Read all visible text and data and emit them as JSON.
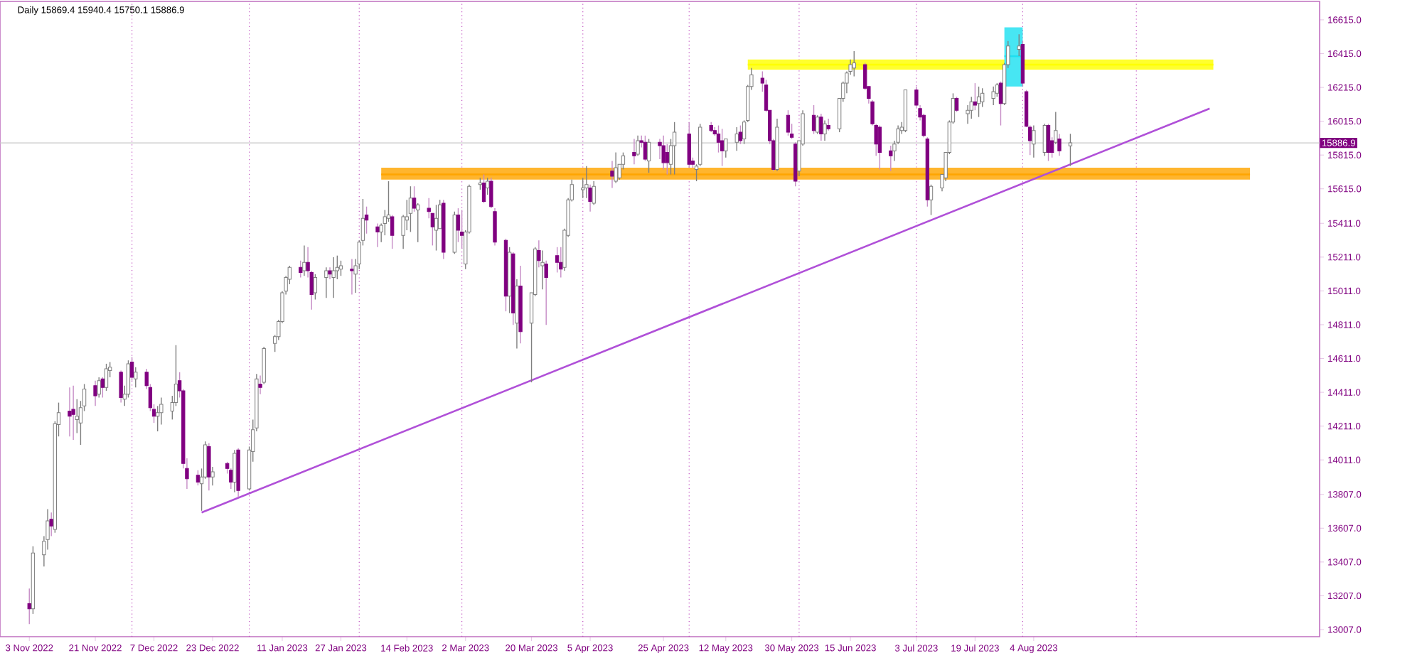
{
  "chart_data": {
    "type": "candlestick",
    "title": "Daily 15869.4 15940.4 15750.1 15886.9",
    "xlim": [
      "2022-10-26",
      "2023-10-21"
    ],
    "ylim": [
      12965,
      16724
    ],
    "xticks": [
      {
        "value": "2022-11-03",
        "label": "3 Nov 2022"
      },
      {
        "value": "2022-11-21",
        "label": "21 Nov 2022"
      },
      {
        "value": "2022-12-07",
        "label": "7 Dec 2022"
      },
      {
        "value": "2022-12-23",
        "label": "23 Dec 2022"
      },
      {
        "value": "2023-01-11",
        "label": "11 Jan 2023"
      },
      {
        "value": "2023-01-27",
        "label": "27 Jan 2023"
      },
      {
        "value": "2023-02-14",
        "label": "14 Feb 2023"
      },
      {
        "value": "2023-03-02",
        "label": "2 Mar 2023"
      },
      {
        "value": "2023-03-20",
        "label": "20 Mar 2023"
      },
      {
        "value": "2023-04-05",
        "label": "5 Apr 2023"
      },
      {
        "value": "2023-04-25",
        "label": "25 Apr 2023"
      },
      {
        "value": "2023-05-12",
        "label": "12 May 2023"
      },
      {
        "value": "2023-05-30",
        "label": "30 May 2023"
      },
      {
        "value": "2023-06-15",
        "label": "15 Jun 2023"
      },
      {
        "value": "2023-07-03",
        "label": "3 Jul 2023"
      },
      {
        "value": "2023-07-19",
        "label": "19 Jul 2023"
      },
      {
        "value": "2023-08-04",
        "label": "4 Aug 2023"
      }
    ],
    "yticks": [
      {
        "value": 16615,
        "label": "16615.0"
      },
      {
        "value": 16415,
        "label": "16415.0"
      },
      {
        "value": 16215,
        "label": "16215.0"
      },
      {
        "value": 16015,
        "label": "16015.0"
      },
      {
        "value": 15815,
        "label": "15815.0"
      },
      {
        "value": 15615,
        "label": "15615.0"
      },
      {
        "value": 15411,
        "label": "15411.0"
      },
      {
        "value": 15211,
        "label": "15211.0"
      },
      {
        "value": 15011,
        "label": "15011.0"
      },
      {
        "value": 14811,
        "label": "14811.0"
      },
      {
        "value": 14611,
        "label": "14611.0"
      },
      {
        "value": 14411,
        "label": "14411.0"
      },
      {
        "value": 14211,
        "label": "14211.0"
      },
      {
        "value": 14011,
        "label": "14011.0"
      },
      {
        "value": 13807,
        "label": "13807.0"
      },
      {
        "value": 13607,
        "label": "13607.0"
      },
      {
        "value": 13407,
        "label": "13407.0"
      },
      {
        "value": 13207,
        "label": "13207.0"
      },
      {
        "value": 13007,
        "label": "13007.0"
      }
    ],
    "ref_lines": [
      {
        "axis": "y",
        "value": 15886.9,
        "label": "15886.9",
        "color": "#c8c8c8"
      },
      {
        "axis": "x",
        "value": "2022-12-01",
        "color": "#c050c0",
        "line_style": "dotted"
      },
      {
        "axis": "x",
        "value": "2023-01-02",
        "color": "#c050c0",
        "line_style": "dotted"
      },
      {
        "axis": "x",
        "value": "2023-02-01",
        "color": "#c050c0",
        "line_style": "dotted"
      },
      {
        "axis": "x",
        "value": "2023-03-01",
        "color": "#c050c0",
        "line_style": "dotted"
      },
      {
        "axis": "x",
        "value": "2023-04-03",
        "color": "#c050c0",
        "line_style": "dotted"
      },
      {
        "axis": "x",
        "value": "2023-05-02",
        "color": "#c050c0",
        "line_style": "dotted"
      },
      {
        "axis": "x",
        "value": "2023-06-01",
        "color": "#c050c0",
        "line_style": "dotted"
      },
      {
        "axis": "x",
        "value": "2023-07-03",
        "color": "#c050c0",
        "line_style": "dotted"
      },
      {
        "axis": "x",
        "value": "2023-08-01",
        "color": "#c050c0",
        "line_style": "dotted"
      },
      {
        "axis": "x",
        "value": "2023-09-01",
        "color": "#c050c0",
        "line_style": "dotted"
      }
    ],
    "series": [
      {
        "type": "line",
        "x": [
          "2023-05-18",
          "2023-09-22"
        ],
        "values": [
          16350,
          16350
        ],
        "lower": [
          16320,
          16320
        ],
        "upper": [
          16380,
          16380
        ],
        "color": "#ffff00"
      },
      {
        "type": "line",
        "x": [
          "2023-02-07",
          "2023-10-02"
        ],
        "values": [
          15700,
          15700
        ],
        "lower": [
          15670,
          15670
        ],
        "upper": [
          15740,
          15740
        ],
        "color": "#ffa500"
      },
      {
        "type": "line",
        "x": [
          "2023-07-27",
          "2023-08-01"
        ],
        "values": [
          16400,
          16400
        ],
        "lower": [
          16220,
          16220
        ],
        "upper": [
          16570,
          16570
        ],
        "color": "#1ee0f0"
      },
      {
        "type": "line",
        "x": [
          "2022-12-20",
          "2023-09-21"
        ],
        "values": [
          13700,
          16090
        ],
        "color": "#b050d8"
      },
      {
        "colors": [
          "#800080",
          "#ffffff",
          "#ffffff",
          "#ffffff",
          "#800080",
          "#ffffff",
          "#ffffff",
          "#800080",
          "#800080",
          "#ffffff",
          "#ffffff",
          "#ffffff",
          "#800080",
          "#ffffff",
          "#800080",
          "#ffffff",
          "#ffffff",
          "#800080",
          "#ffffff",
          "#ffffff",
          "#800080",
          "#ffffff",
          "#800080",
          "#800080",
          "#800080",
          "#ffffff",
          "#ffffff",
          "#ffffff",
          "#ffffff",
          "#800080",
          "#800080",
          "#800080",
          "#800080",
          "#ffffff",
          "#ffffff",
          "#800080",
          "#ffffff",
          "#800080",
          "#800080",
          "#ffffff",
          "#800080",
          "#ffffff",
          "#ffffff",
          "#ffffff",
          "#800080",
          "#ffffff",
          "#ffffff",
          "#ffffff",
          "#ffffff",
          "#ffffff",
          "#ffffff",
          "#800080",
          "#ffffff",
          "#800080",
          "#800080",
          "#ffffff",
          "#ffffff",
          "#800080",
          "#ffffff",
          "#ffffff",
          "#ffffff",
          "#800080",
          "#ffffff",
          "#ffffff",
          "#ffffff",
          "#800080",
          "#800080",
          "#ffffff",
          "#ffffff",
          "#ffffff",
          "#800080",
          "#ffffff",
          "#ffffff",
          "#ffffff",
          "#800080",
          "#ffffff",
          "#800080",
          "#800080",
          "#ffffff",
          "#ffffff",
          "#800080",
          "#ffffff",
          "#800080",
          "#800080",
          "#ffffff",
          "#ffffff",
          "#ffffff",
          "#800080",
          "#ffffff",
          "#800080",
          "#800080",
          "#800080",
          "#ffffff",
          "#800080",
          "#ffffff",
          "#800080",
          "#ffffff",
          "#ffffff",
          "#800080",
          "#ffffff",
          "#800080",
          "#800080",
          "#800080",
          "#ffffff",
          "#ffffff",
          "#ffffff",
          "#ffffff",
          "#ffffff",
          "#800080",
          "#ffffff",
          "#800080",
          "#ffffff",
          "#ffffff",
          "#ffffff",
          "#800080",
          "#ffffff",
          "#800080",
          "#800080",
          "#ffffff",
          "#800080",
          "#800080",
          "#800080",
          "#ffffff",
          "#ffffff",
          "#800080",
          "#800080",
          "#ffffff",
          "#ffffff",
          "#800080",
          "#800080",
          "#800080",
          "#800080",
          "#ffffff",
          "#ffffff",
          "#800080",
          "#ffffff",
          "#ffffff",
          "#ffffff",
          "#800080",
          "#800080",
          "#800080",
          "#800080",
          "#ffffff",
          "#800080",
          "#800080",
          "#800080",
          "#ffffff",
          "#ffffff",
          "#800080",
          "#ffffff",
          "#800080",
          "#ffffff",
          "#800080",
          "#ffffff",
          "#ffffff",
          "#ffffff",
          "#ffffff",
          "#ffffff",
          "#800080",
          "#800080",
          "#800080",
          "#800080",
          "#800080",
          "#800080",
          "#ffffff",
          "#ffffff",
          "#ffffff",
          "#ffffff",
          "#800080",
          "#800080",
          "#800080",
          "#800080",
          "#ffffff",
          "#ffffff",
          "#ffffff",
          "#ffffff",
          "#ffffff",
          "#800080",
          "#ffffff",
          "#ffffff",
          "#800080",
          "#ffffff",
          "#ffffff",
          "#ffffff",
          "#ffffff",
          "#800080",
          "#ffffff",
          "#ffffff",
          "#ffffff",
          "#800080",
          "#800080",
          "#800080",
          "#ffffff",
          "#ffffff",
          "#800080",
          "#800080",
          "#ffffff",
          "#800080",
          "#ffffff"
        ],
        "x": [
          "2022-11-03",
          "2022-11-04",
          "2022-11-07",
          "2022-11-08",
          "2022-11-09",
          "2022-11-10",
          "2022-11-11",
          "2022-11-14",
          "2022-11-15",
          "2022-11-16",
          "2022-11-17",
          "2022-11-18",
          "2022-11-21",
          "2022-11-22",
          "2022-11-23",
          "2022-11-24",
          "2022-11-25",
          "2022-11-28",
          "2022-11-29",
          "2022-11-30",
          "2022-12-01",
          "2022-12-02",
          "2022-12-05",
          "2022-12-06",
          "2022-12-07",
          "2022-12-08",
          "2022-12-09",
          "2022-12-12",
          "2022-12-13",
          "2022-12-14",
          "2022-12-15",
          "2022-12-16",
          "2022-12-19",
          "2022-12-20",
          "2022-12-21",
          "2022-12-22",
          "2022-12-23",
          "2022-12-27",
          "2022-12-28",
          "2022-12-29",
          "2022-12-30",
          "2023-01-02",
          "2023-01-03",
          "2023-01-04",
          "2023-01-05",
          "2023-01-06",
          "2023-01-09",
          "2023-01-10",
          "2023-01-11",
          "2023-01-12",
          "2023-01-13",
          "2023-01-16",
          "2023-01-17",
          "2023-01-18",
          "2023-01-19",
          "2023-01-20",
          "2023-01-23",
          "2023-01-24",
          "2023-01-25",
          "2023-01-26",
          "2023-01-27",
          "2023-01-30",
          "2023-01-31",
          "2023-02-01",
          "2023-02-02",
          "2023-02-03",
          "2023-02-06",
          "2023-02-07",
          "2023-02-08",
          "2023-02-09",
          "2023-02-10",
          "2023-02-13",
          "2023-02-14",
          "2023-02-15",
          "2023-02-16",
          "2023-02-17",
          "2023-02-20",
          "2023-02-21",
          "2023-02-22",
          "2023-02-23",
          "2023-02-24",
          "2023-02-27",
          "2023-02-28",
          "2023-03-01",
          "2023-03-02",
          "2023-03-03",
          "2023-03-06",
          "2023-03-07",
          "2023-03-08",
          "2023-03-09",
          "2023-03-10",
          "2023-03-13",
          "2023-03-14",
          "2023-03-15",
          "2023-03-16",
          "2023-03-17",
          "2023-03-20",
          "2023-03-21",
          "2023-03-22",
          "2023-03-23",
          "2023-03-24",
          "2023-03-27",
          "2023-03-28",
          "2023-03-29",
          "2023-03-30",
          "2023-03-31",
          "2023-04-03",
          "2023-04-04",
          "2023-04-05",
          "2023-04-06",
          "2023-04-11",
          "2023-04-12",
          "2023-04-13",
          "2023-04-14",
          "2023-04-17",
          "2023-04-18",
          "2023-04-19",
          "2023-04-20",
          "2023-04-21",
          "2023-04-24",
          "2023-04-25",
          "2023-04-26",
          "2023-04-27",
          "2023-04-28",
          "2023-05-02",
          "2023-05-03",
          "2023-05-04",
          "2023-05-05",
          "2023-05-08",
          "2023-05-09",
          "2023-05-10",
          "2023-05-11",
          "2023-05-12",
          "2023-05-15",
          "2023-05-16",
          "2023-05-17",
          "2023-05-18",
          "2023-05-19",
          "2023-05-22",
          "2023-05-23",
          "2023-05-24",
          "2023-05-25",
          "2023-05-26",
          "2023-05-29",
          "2023-05-30",
          "2023-05-31",
          "2023-06-01",
          "2023-06-02",
          "2023-06-05",
          "2023-06-06",
          "2023-06-07",
          "2023-06-08",
          "2023-06-09",
          "2023-06-12",
          "2023-06-13",
          "2023-06-14",
          "2023-06-15",
          "2023-06-16",
          "2023-06-19",
          "2023-06-20",
          "2023-06-21",
          "2023-06-22",
          "2023-06-23",
          "2023-06-26",
          "2023-06-27",
          "2023-06-28",
          "2023-06-29",
          "2023-06-30",
          "2023-07-03",
          "2023-07-04",
          "2023-07-05",
          "2023-07-06",
          "2023-07-07",
          "2023-07-10",
          "2023-07-11",
          "2023-07-12",
          "2023-07-13",
          "2023-07-14",
          "2023-07-17",
          "2023-07-18",
          "2023-07-19",
          "2023-07-20",
          "2023-07-21",
          "2023-07-24",
          "2023-07-25",
          "2023-07-26",
          "2023-07-27",
          "2023-07-28",
          "2023-07-31",
          "2023-08-01",
          "2023-08-02",
          "2023-08-03",
          "2023-08-04",
          "2023-08-07",
          "2023-08-08",
          "2023-08-09",
          "2023-08-10",
          "2023-08-11",
          "2023-08-14"
        ],
        "ohlc": [
          [
            13160,
            13250,
            13040,
            13130
          ],
          [
            13130,
            13500,
            13100,
            13460
          ],
          [
            13450,
            13560,
            13380,
            13530
          ],
          [
            13540,
            13720,
            13480,
            13650
          ],
          [
            13660,
            13700,
            13560,
            13620
          ],
          [
            13600,
            14240,
            13580,
            14225
          ],
          [
            14220,
            14350,
            14150,
            14290
          ],
          [
            14300,
            14440,
            14150,
            14270
          ],
          [
            14310,
            14450,
            14130,
            14280
          ],
          [
            14250,
            14370,
            14170,
            14270
          ],
          [
            14230,
            14360,
            14100,
            14320
          ],
          [
            14330,
            14460,
            14300,
            14430
          ],
          [
            14450,
            14480,
            14330,
            14390
          ],
          [
            14400,
            14500,
            14380,
            14480
          ],
          [
            14490,
            14500,
            14380,
            14440
          ],
          [
            14440,
            14580,
            14420,
            14550
          ],
          [
            14540,
            14590,
            14500,
            14560
          ],
          [
            14530,
            14540,
            14350,
            14380
          ],
          [
            14370,
            14450,
            14330,
            14400
          ],
          [
            14400,
            14600,
            14380,
            14580
          ],
          [
            14590,
            14620,
            14480,
            14500
          ],
          [
            14490,
            14560,
            14440,
            14530
          ],
          [
            14530,
            14550,
            14430,
            14450
          ],
          [
            14440,
            14460,
            14300,
            14320
          ],
          [
            14310,
            14340,
            14230,
            14270
          ],
          [
            14270,
            14330,
            14180,
            14290
          ],
          [
            14290,
            14380,
            14220,
            14340
          ],
          [
            14300,
            14390,
            14250,
            14350
          ],
          [
            14350,
            14690,
            14330,
            14460
          ],
          [
            14480,
            14530,
            14380,
            14420
          ],
          [
            14420,
            14430,
            13960,
            13990
          ],
          [
            13960,
            14020,
            13840,
            13900
          ],
          [
            13920,
            13950,
            13860,
            13880
          ],
          [
            13870,
            13960,
            13710,
            13910
          ],
          [
            13910,
            14120,
            13900,
            14100
          ],
          [
            14090,
            14110,
            13830,
            13910
          ],
          [
            13910,
            13970,
            13860,
            13940
          ],
          [
            13990,
            14000,
            13930,
            13960
          ],
          [
            13950,
            13960,
            13840,
            13880
          ],
          [
            13880,
            14070,
            13820,
            14050
          ],
          [
            14070,
            14080,
            13790,
            13830
          ],
          [
            13840,
            14090,
            13830,
            14070
          ],
          [
            14060,
            14250,
            14000,
            14190
          ],
          [
            14200,
            14520,
            14180,
            14490
          ],
          [
            14460,
            14510,
            14400,
            14440
          ],
          [
            14470,
            14680,
            14460,
            14670
          ],
          [
            14700,
            14750,
            14650,
            14740
          ],
          [
            14740,
            14840,
            14720,
            14830
          ],
          [
            14830,
            15010,
            14820,
            15000
          ],
          [
            15010,
            15100,
            14990,
            15090
          ],
          [
            15080,
            15160,
            15050,
            15150
          ],
          [
            15150,
            15190,
            15090,
            15120
          ],
          [
            15130,
            15280,
            15100,
            15180
          ],
          [
            15180,
            15270,
            15090,
            15130
          ],
          [
            15120,
            15130,
            14900,
            14990
          ],
          [
            15000,
            15110,
            14960,
            15090
          ],
          [
            15090,
            15150,
            14970,
            15130
          ],
          [
            15130,
            15150,
            15080,
            15110
          ],
          [
            15090,
            15210,
            14970,
            15130
          ],
          [
            15130,
            15220,
            15080,
            15150
          ],
          [
            15140,
            15190,
            15100,
            15160
          ],
          [
            15140,
            15200,
            14990,
            15130
          ],
          [
            15110,
            15200,
            15000,
            15160
          ],
          [
            15170,
            15310,
            15140,
            15300
          ],
          [
            15310,
            15555,
            15280,
            15440
          ],
          [
            15460,
            15510,
            15350,
            15430
          ],
          [
            15390,
            15410,
            15270,
            15360
          ],
          [
            15360,
            15410,
            15300,
            15400
          ],
          [
            15410,
            15490,
            15340,
            15450
          ],
          [
            15440,
            15660,
            15420,
            15460
          ],
          [
            15450,
            15460,
            15260,
            15340
          ],
          [
            15340,
            15460,
            15260,
            15450
          ],
          [
            15430,
            15550,
            15370,
            15450
          ],
          [
            15470,
            15630,
            15360,
            15560
          ],
          [
            15560,
            15630,
            15480,
            15500
          ],
          [
            15490,
            15530,
            15300,
            15520
          ],
          [
            15500,
            15560,
            15440,
            15480
          ],
          [
            15470,
            15470,
            15280,
            15390
          ],
          [
            15370,
            15520,
            15250,
            15440
          ],
          [
            15380,
            15550,
            15380,
            15520
          ],
          [
            15530,
            15550,
            15200,
            15240
          ],
          [
            15240,
            15480,
            15230,
            15460
          ],
          [
            15460,
            15500,
            15300,
            15370
          ],
          [
            15360,
            15490,
            15260,
            15340
          ],
          [
            15170,
            15370,
            15140,
            15360
          ],
          [
            15360,
            15640,
            15350,
            15630
          ],
          [
            15640,
            15680,
            15610,
            15650
          ],
          [
            15650,
            15700,
            15530,
            15540
          ],
          [
            15620,
            15680,
            15580,
            15660
          ],
          [
            15660,
            15680,
            15500,
            15510
          ],
          [
            15480,
            15500,
            15280,
            15300
          ],
          [
            15310,
            15320,
            14890,
            14980
          ],
          [
            14980,
            15270,
            14880,
            15240
          ],
          [
            15230,
            15240,
            14810,
            14880
          ],
          [
            14820,
            15080,
            14670,
            15040
          ],
          [
            15040,
            15160,
            14700,
            14770
          ],
          [
            14820,
            15000,
            14470,
            15000
          ],
          [
            14990,
            15270,
            14980,
            15260
          ],
          [
            15250,
            15310,
            15150,
            15190
          ],
          [
            15160,
            15250,
            15020,
            15180
          ],
          [
            15170,
            15190,
            14810,
            15090
          ],
          [
            15220,
            15270,
            15120,
            15180
          ],
          [
            15180,
            15270,
            15090,
            15140
          ],
          [
            15150,
            15380,
            15130,
            15370
          ],
          [
            15340,
            15560,
            15330,
            15550
          ],
          [
            15550,
            15670,
            15540,
            15640
          ],
          [
            15610,
            15680,
            15560,
            15620
          ],
          [
            15620,
            15750,
            15560,
            15640
          ],
          [
            15620,
            15640,
            15480,
            15540
          ],
          [
            15530,
            15660,
            15520,
            15630
          ],
          [
            15720,
            15780,
            15620,
            15690
          ],
          [
            15660,
            15830,
            15650,
            15740
          ],
          [
            15680,
            15760,
            15670,
            15760
          ],
          [
            15760,
            15830,
            15730,
            15810
          ],
          [
            15830,
            15910,
            15760,
            15810
          ],
          [
            15820,
            15930,
            15810,
            15900
          ],
          [
            15900,
            15930,
            15860,
            15890
          ],
          [
            15890,
            15930,
            15780,
            15790
          ],
          [
            15780,
            15910,
            15710,
            15890
          ],
          [
            15890,
            15910,
            15790,
            15870
          ],
          [
            15870,
            15930,
            15730,
            15770
          ],
          [
            15830,
            15880,
            15700,
            15770
          ],
          [
            15760,
            15910,
            15700,
            15870
          ],
          [
            15870,
            16010,
            15700,
            15950
          ],
          [
            15940,
            16010,
            15740,
            15760
          ],
          [
            15780,
            15800,
            15740,
            15760
          ],
          [
            15730,
            15760,
            15660,
            15750
          ],
          [
            15760,
            16000,
            15750,
            15980
          ],
          [
            15990,
            16010,
            15950,
            15960
          ],
          [
            15960,
            15980,
            15930,
            15940
          ],
          [
            15940,
            15990,
            15830,
            15890
          ],
          [
            15900,
            15970,
            15750,
            15840
          ],
          [
            15840,
            15910,
            15800,
            15910
          ],
          [
            15890,
            15980,
            15840,
            15940
          ],
          [
            15950,
            15990,
            15880,
            15900
          ],
          [
            15910,
            16020,
            15880,
            16010
          ],
          [
            16020,
            16230,
            16010,
            16220
          ],
          [
            16220,
            16330,
            16200,
            16290
          ],
          [
            16270,
            16310,
            16190,
            16240
          ],
          [
            16230,
            16260,
            16070,
            16080
          ],
          [
            16080,
            16080,
            15880,
            15900
          ],
          [
            15900,
            15910,
            15720,
            15730
          ],
          [
            15730,
            16030,
            15720,
            15980
          ],
          [
            16050,
            16080,
            15930,
            15950
          ],
          [
            15940,
            16000,
            15910,
            15920
          ],
          [
            15880,
            15890,
            15630,
            15660
          ],
          [
            15720,
            15900,
            15690,
            15900
          ],
          [
            15880,
            16080,
            15870,
            16060
          ],
          [
            16050,
            16110,
            15940,
            15960
          ],
          [
            15950,
            16050,
            15940,
            16040
          ],
          [
            16040,
            16060,
            15900,
            15940
          ],
          [
            15940,
            16020,
            15900,
            16000
          ],
          [
            15990,
            16030,
            15960,
            15970
          ],
          [
            15970,
            16150,
            15950,
            16150
          ],
          [
            16150,
            16250,
            16130,
            16240
          ],
          [
            16240,
            16310,
            16180,
            16300
          ],
          [
            16310,
            16380,
            16290,
            16350
          ],
          [
            16330,
            16430,
            16280,
            16360
          ],
          [
            16350,
            16360,
            16200,
            16210
          ],
          [
            16220,
            16220,
            16120,
            16150
          ],
          [
            16130,
            16140,
            15990,
            16000
          ],
          [
            15990,
            16000,
            15810,
            15880
          ],
          [
            15980,
            15990,
            15730,
            15830
          ],
          [
            15840,
            15870,
            15720,
            15810
          ],
          [
            15840,
            15900,
            15780,
            15880
          ],
          [
            15890,
            15990,
            15880,
            15970
          ],
          [
            15960,
            16010,
            15940,
            15980
          ],
          [
            15960,
            16200,
            15950,
            16200
          ],
          [
            16200,
            16220,
            16100,
            16110
          ],
          [
            16090,
            16110,
            16020,
            16040
          ],
          [
            16050,
            16060,
            15920,
            15930
          ],
          [
            15910,
            15920,
            15510,
            15550
          ],
          [
            15550,
            15640,
            15460,
            15630
          ],
          [
            15620,
            15700,
            15600,
            15700
          ],
          [
            15680,
            15830,
            15660,
            15830
          ],
          [
            15830,
            16020,
            15820,
            16010
          ],
          [
            16010,
            16180,
            16000,
            16150
          ],
          [
            16150,
            16160,
            16070,
            16080
          ],
          [
            16060,
            16110,
            16000,
            16080
          ],
          [
            16080,
            16160,
            16030,
            16130
          ],
          [
            16130,
            16240,
            16080,
            16110
          ],
          [
            16120,
            16220,
            16040,
            16160
          ],
          [
            16130,
            16210,
            16100,
            16180
          ],
          [
            16150,
            16220,
            16110,
            16190
          ],
          [
            16180,
            16240,
            16160,
            16230
          ],
          [
            16240,
            16250,
            15990,
            16120
          ],
          [
            16120,
            16360,
            16110,
            16350
          ],
          [
            16350,
            16490,
            16330,
            16460
          ],
          [
            16440,
            16530,
            16400,
            16460
          ],
          [
            16470,
            16490,
            16220,
            16240
          ],
          [
            16190,
            16200,
            15980,
            15985
          ],
          [
            15980,
            15990,
            15815,
            15900
          ],
          [
            15880,
            15990,
            15800,
            15960
          ],
          [
            15830,
            16000,
            15810,
            15990
          ],
          [
            15990,
            16000,
            15780,
            15830
          ],
          [
            15900,
            15920,
            15800,
            15830
          ],
          [
            15890,
            16070,
            15880,
            15960
          ],
          [
            15910,
            15940,
            15810,
            15840
          ],
          [
            15869.4,
            15940.4,
            15750.1,
            15886.9
          ]
        ]
      }
    ]
  }
}
